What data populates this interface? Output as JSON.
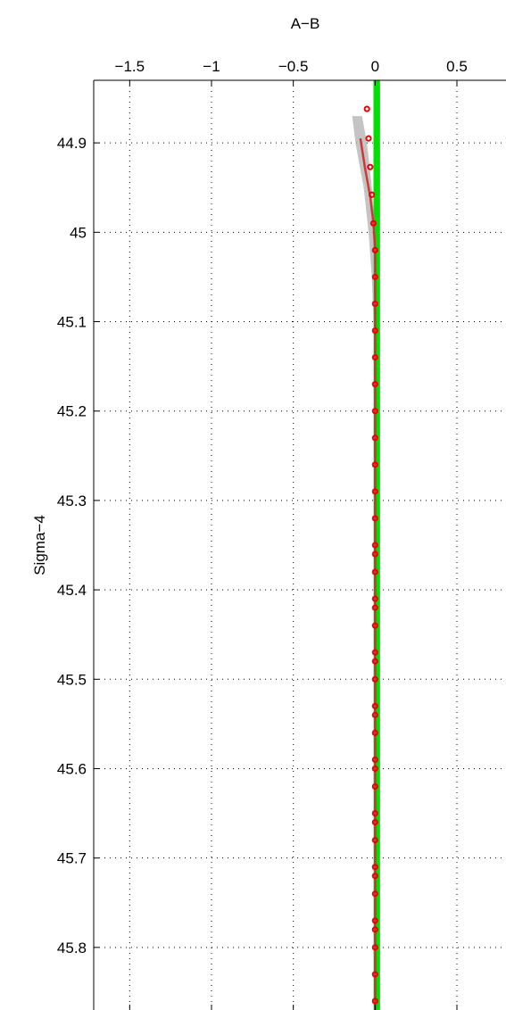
{
  "chart_data": {
    "type": "line",
    "xlabel": "A−B",
    "ylabel": "Sigma−4",
    "xlim": [
      -1.72,
      0.8
    ],
    "ylim": [
      44.83,
      45.87
    ],
    "y_reversed": true,
    "x_axis_position": "top",
    "grid": true,
    "x_ticks": [
      {
        "value": -1.5,
        "label": "−1.5"
      },
      {
        "value": -1,
        "label": "−1"
      },
      {
        "value": -0.5,
        "label": "−0.5"
      },
      {
        "value": 0,
        "label": "0"
      },
      {
        "value": 0.5,
        "label": "0.5"
      }
    ],
    "y_ticks": [
      {
        "value": 44.9,
        "label": "44.9"
      },
      {
        "value": 45.0,
        "label": "45"
      },
      {
        "value": 45.1,
        "label": "45.1"
      },
      {
        "value": 45.2,
        "label": "45.2"
      },
      {
        "value": 45.3,
        "label": "45.3"
      },
      {
        "value": 45.4,
        "label": "45.4"
      },
      {
        "value": 45.5,
        "label": "45.5"
      },
      {
        "value": 45.6,
        "label": "45.6"
      },
      {
        "value": 45.7,
        "label": "45.7"
      },
      {
        "value": 45.8,
        "label": "45.8"
      }
    ],
    "reference_band": {
      "x": [
        -0.01,
        0.03
      ],
      "color": "#00e000"
    },
    "series": [
      {
        "style": "band",
        "color": "#b0b0b0",
        "x_lo": [
          -0.14,
          -0.12,
          -0.07,
          -0.04,
          -0.02,
          -0.01,
          -0.01
        ],
        "x_hi": [
          -0.08,
          -0.05,
          -0.02,
          0.0,
          0.0,
          0.0,
          0.0
        ],
        "y": [
          44.87,
          44.9,
          44.95,
          45.0,
          45.05,
          45.1,
          45.87
        ]
      },
      {
        "style": "line",
        "color": "#d02020",
        "x": [
          -0.09,
          -0.06,
          -0.03,
          -0.01,
          0.0,
          0.0
        ],
        "y": [
          44.895,
          44.93,
          44.96,
          44.99,
          45.02,
          45.87
        ]
      },
      {
        "style": "markers",
        "color": "#ee0000",
        "x": [
          -0.05,
          -0.04,
          -0.03,
          -0.02,
          -0.01,
          0.0,
          0.0,
          0.0,
          0.0,
          0.0,
          0.0,
          0.0,
          0.0,
          0.0,
          0.0,
          0.0,
          0.0,
          0.0,
          0.0,
          0.0,
          0.0,
          0.0,
          0.0,
          0.0,
          0.0,
          0.0,
          0.0,
          0.0,
          0.0,
          0.0,
          0.0,
          0.0,
          0.0,
          0.0,
          0.0,
          0.0,
          0.0,
          0.0,
          0.0,
          0.0,
          0.0,
          0.0
        ],
        "y": [
          44.862,
          44.895,
          44.927,
          44.958,
          44.99,
          45.02,
          45.05,
          45.08,
          45.11,
          45.14,
          45.17,
          45.2,
          45.23,
          45.26,
          45.29,
          45.32,
          45.35,
          45.38,
          45.41,
          45.44,
          45.47,
          45.5,
          45.53,
          45.56,
          45.59,
          45.62,
          45.65,
          45.68,
          45.71,
          45.74,
          45.77,
          45.8,
          45.83,
          45.86,
          45.78,
          45.72,
          45.66,
          45.6,
          45.54,
          45.48,
          45.42,
          45.36
        ]
      }
    ]
  }
}
